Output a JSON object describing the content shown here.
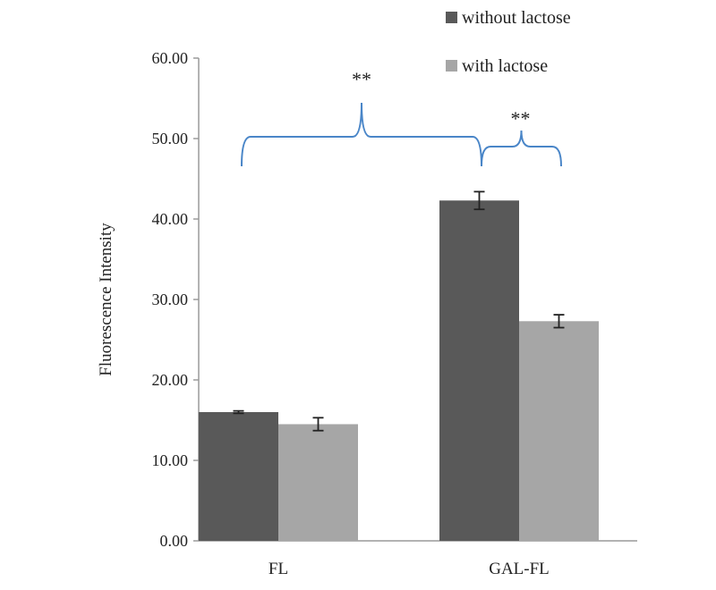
{
  "chart_data": {
    "type": "bar",
    "categories": [
      "FL",
      "GAL-FL"
    ],
    "series": [
      {
        "name": "without lactose",
        "values": [
          16.0,
          42.3
        ],
        "errors": [
          0.15,
          1.1
        ],
        "color": "#595959"
      },
      {
        "name": "with lactose",
        "values": [
          14.5,
          27.3
        ],
        "errors": [
          0.8,
          0.8
        ],
        "color": "#a6a6a6"
      }
    ],
    "ylabel": "Fluorescence Intensity",
    "xlabel": "",
    "ylim": [
      0,
      60
    ],
    "yticks": [
      "0.00",
      "10.00",
      "20.00",
      "30.00",
      "40.00",
      "50.00",
      "60.00"
    ],
    "yticks_values": [
      0,
      10,
      20,
      30,
      40,
      50,
      60
    ],
    "grid": false,
    "legend_position": "top-right",
    "annotations": [
      {
        "text": "**",
        "bracket_color": "#4a86c8",
        "compares": "FL vs GAL-FL"
      },
      {
        "text": "**",
        "bracket_color": "#4a86c8",
        "compares": "GAL-FL without lactose vs with lactose"
      }
    ]
  }
}
